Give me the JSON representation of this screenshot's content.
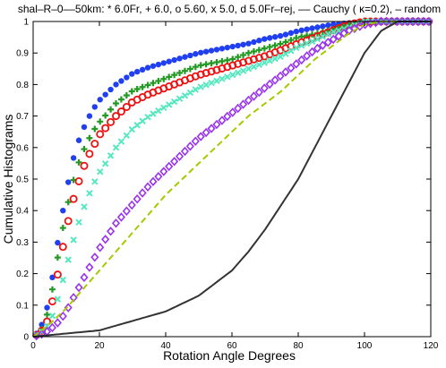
{
  "chart_data": {
    "type": "line",
    "title": "shal–R–0––50km: * 6.0Fr, + 6.0, o 5.60, x 5.0, d 5.0Fr–rej, –– Cauchy ( κ=0.2), – random",
    "xlabel": "Rotation Angle Degrees",
    "ylabel": "Cumulative Histograms",
    "xlim": [
      0,
      120
    ],
    "ylim": [
      0,
      1
    ],
    "xticks": [
      0,
      20,
      40,
      60,
      80,
      100,
      120
    ],
    "yticks": [
      0,
      0.1,
      0.2,
      0.3,
      0.4,
      0.5,
      0.6,
      0.7,
      0.8,
      0.9,
      1
    ],
    "grid": false,
    "series": [
      {
        "marker": "circle-filled",
        "color": "#1f3ff0",
        "x": [
          0,
          2,
          4,
          6,
          8,
          10,
          12,
          14,
          16,
          18,
          20,
          25,
          30,
          35,
          40,
          45,
          50,
          55,
          60,
          65,
          70,
          75,
          80,
          85,
          90,
          95,
          100,
          105,
          110,
          115,
          120
        ],
        "y": [
          0,
          0.02,
          0.08,
          0.2,
          0.34,
          0.46,
          0.56,
          0.63,
          0.68,
          0.72,
          0.75,
          0.8,
          0.835,
          0.855,
          0.87,
          0.885,
          0.9,
          0.91,
          0.92,
          0.93,
          0.945,
          0.955,
          0.97,
          0.98,
          0.99,
          0.995,
          1,
          1,
          1,
          1,
          1
        ]
      },
      {
        "marker": "plus",
        "color": "#229922",
        "x": [
          0,
          2,
          4,
          6,
          8,
          10,
          12,
          14,
          16,
          18,
          20,
          25,
          30,
          35,
          40,
          45,
          50,
          55,
          60,
          65,
          70,
          75,
          80,
          85,
          90,
          95,
          100,
          105,
          110,
          115,
          120
        ],
        "y": [
          0,
          0.01,
          0.06,
          0.16,
          0.29,
          0.4,
          0.49,
          0.56,
          0.61,
          0.65,
          0.68,
          0.74,
          0.78,
          0.8,
          0.82,
          0.84,
          0.86,
          0.87,
          0.88,
          0.9,
          0.915,
          0.93,
          0.95,
          0.96,
          0.975,
          0.99,
          1,
          1,
          1,
          1,
          1
        ]
      },
      {
        "marker": "circle-open",
        "color": "#ee1111",
        "x": [
          0,
          2,
          4,
          6,
          8,
          10,
          12,
          14,
          16,
          18,
          20,
          25,
          30,
          35,
          40,
          45,
          50,
          55,
          60,
          65,
          70,
          75,
          80,
          85,
          90,
          95,
          100,
          105,
          110,
          115,
          120
        ],
        "y": [
          0,
          0.01,
          0.04,
          0.12,
          0.23,
          0.34,
          0.43,
          0.5,
          0.56,
          0.6,
          0.64,
          0.7,
          0.745,
          0.77,
          0.79,
          0.81,
          0.83,
          0.845,
          0.86,
          0.875,
          0.89,
          0.91,
          0.93,
          0.95,
          0.97,
          0.99,
          1,
          1,
          1,
          1,
          1
        ]
      },
      {
        "marker": "x",
        "color": "#55e8c0",
        "x": [
          0,
          2,
          4,
          6,
          8,
          10,
          12,
          14,
          16,
          18,
          20,
          25,
          30,
          35,
          40,
          45,
          50,
          55,
          60,
          65,
          70,
          75,
          80,
          85,
          90,
          95,
          100,
          105,
          110,
          115,
          120
        ],
        "y": [
          0,
          0.01,
          0.03,
          0.07,
          0.14,
          0.22,
          0.3,
          0.37,
          0.43,
          0.48,
          0.52,
          0.6,
          0.66,
          0.7,
          0.73,
          0.76,
          0.79,
          0.81,
          0.83,
          0.85,
          0.87,
          0.89,
          0.92,
          0.94,
          0.965,
          0.98,
          1,
          1,
          1,
          1,
          1
        ]
      },
      {
        "marker": "diamond",
        "color": "#9933ee",
        "x": [
          0,
          2,
          4,
          6,
          8,
          10,
          12,
          14,
          16,
          18,
          20,
          25,
          30,
          35,
          40,
          45,
          50,
          55,
          60,
          65,
          70,
          75,
          80,
          85,
          90,
          95,
          100,
          105,
          110,
          115,
          120
        ],
        "y": [
          0,
          0.005,
          0.015,
          0.03,
          0.05,
          0.08,
          0.12,
          0.16,
          0.2,
          0.24,
          0.28,
          0.36,
          0.42,
          0.48,
          0.53,
          0.58,
          0.63,
          0.67,
          0.71,
          0.75,
          0.79,
          0.83,
          0.87,
          0.91,
          0.94,
          0.97,
          0.99,
          1,
          1,
          1,
          1
        ]
      },
      {
        "line_style": "dashed",
        "color": "#a8c800",
        "x": [
          0,
          5,
          10,
          15,
          20,
          25,
          30,
          35,
          40,
          45,
          50,
          55,
          60,
          65,
          70,
          75,
          80,
          85,
          90,
          95,
          100,
          105,
          110,
          115,
          120
        ],
        "y": [
          0,
          0.04,
          0.09,
          0.15,
          0.21,
          0.27,
          0.33,
          0.39,
          0.45,
          0.5,
          0.55,
          0.6,
          0.65,
          0.7,
          0.74,
          0.78,
          0.83,
          0.88,
          0.92,
          0.96,
          0.99,
          1,
          1,
          1,
          1
        ]
      },
      {
        "line_style": "solid",
        "color": "#333333",
        "x": [
          0,
          10,
          20,
          30,
          40,
          50,
          55,
          60,
          65,
          70,
          75,
          80,
          85,
          90,
          95,
          100,
          105,
          110,
          115,
          120
        ],
        "y": [
          0,
          0.01,
          0.02,
          0.05,
          0.08,
          0.13,
          0.17,
          0.21,
          0.27,
          0.34,
          0.42,
          0.5,
          0.6,
          0.7,
          0.8,
          0.9,
          0.97,
          1,
          1,
          1
        ]
      }
    ]
  }
}
